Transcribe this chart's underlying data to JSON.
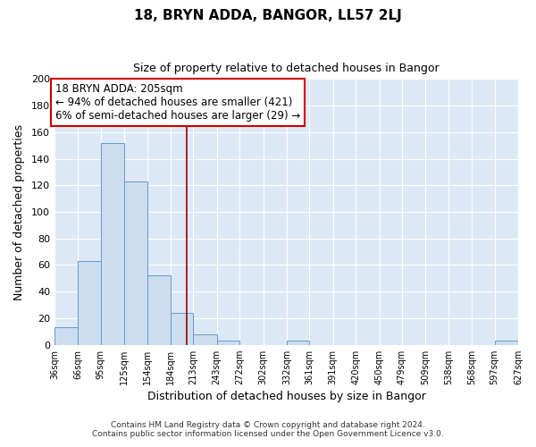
{
  "title": "18, BRYN ADDA, BANGOR, LL57 2LJ",
  "subtitle": "Size of property relative to detached houses in Bangor",
  "xlabel": "Distribution of detached houses by size in Bangor",
  "ylabel": "Number of detached properties",
  "footnote1": "Contains HM Land Registry data © Crown copyright and database right 2024.",
  "footnote2": "Contains public sector information licensed under the Open Government Licence v3.0.",
  "bin_edges": [
    36,
    66,
    95,
    125,
    154,
    184,
    213,
    243,
    272,
    302,
    332,
    361,
    391,
    420,
    450,
    479,
    509,
    538,
    568,
    597,
    627
  ],
  "bin_counts": [
    13,
    63,
    152,
    123,
    52,
    24,
    8,
    3,
    0,
    0,
    3,
    0,
    0,
    0,
    0,
    0,
    0,
    0,
    0,
    3
  ],
  "bar_color": "#ccddf0",
  "bar_edge_color": "#6699cc",
  "background_color": "#dce8f5",
  "fig_background": "#ffffff",
  "vline_x": 205,
  "vline_color": "#990000",
  "annotation_text_line0": "18 BRYN ADDA: 205sqm",
  "annotation_text_line1": "← 94% of detached houses are smaller (421)",
  "annotation_text_line2": "6% of semi-detached houses are larger (29) →",
  "annotation_box_color": "#ffffff",
  "annotation_box_edge_color": "#cc0000",
  "ylim": [
    0,
    200
  ],
  "yticks": [
    0,
    20,
    40,
    60,
    80,
    100,
    120,
    140,
    160,
    180,
    200
  ],
  "tick_labels": [
    "36sqm",
    "66sqm",
    "95sqm",
    "125sqm",
    "154sqm",
    "184sqm",
    "213sqm",
    "243sqm",
    "272sqm",
    "302sqm",
    "332sqm",
    "361sqm",
    "391sqm",
    "420sqm",
    "450sqm",
    "479sqm",
    "509sqm",
    "538sqm",
    "568sqm",
    "597sqm",
    "627sqm"
  ]
}
